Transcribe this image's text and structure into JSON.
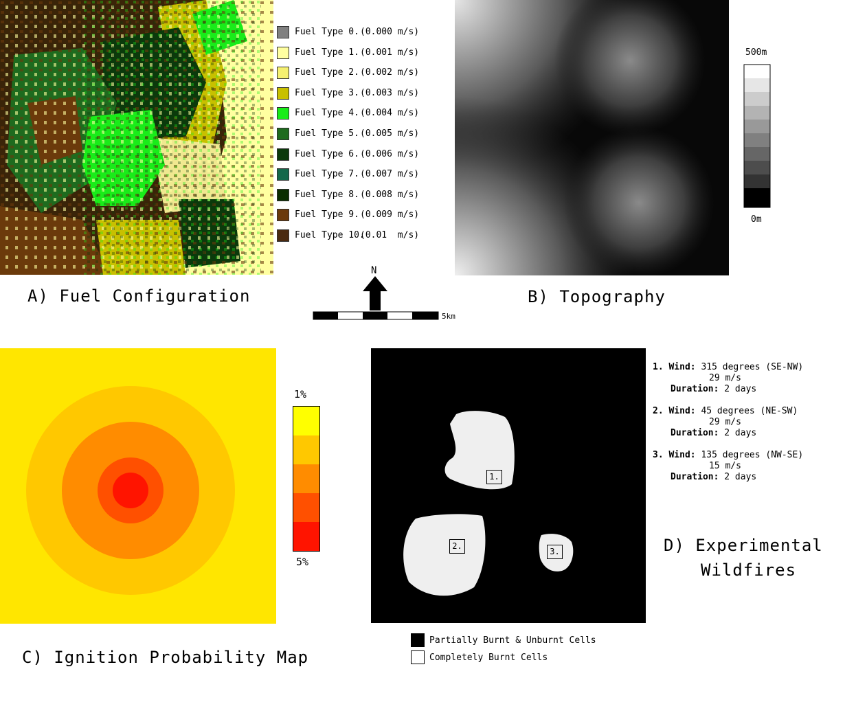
{
  "panels": {
    "a_title": "A) Fuel Configuration",
    "b_title": "B) Topography",
    "c_title": "C) Ignition Probability Map",
    "d_title_line1": "D) Experimental",
    "d_title_line2": "Wildfires"
  },
  "fuel_legend": [
    {
      "label": "Fuel Type 0.",
      "value": "(0.000 m/s)",
      "color": "#808080"
    },
    {
      "label": "Fuel Type 1.",
      "value": "(0.001 m/s)",
      "color": "#ffffa0"
    },
    {
      "label": "Fuel Type 2.",
      "value": "(0.002 m/s)",
      "color": "#f5f070"
    },
    {
      "label": "Fuel Type 3.",
      "value": "(0.003 m/s)",
      "color": "#c8c000"
    },
    {
      "label": "Fuel Type 4.",
      "value": "(0.004 m/s)",
      "color": "#19ec19"
    },
    {
      "label": "Fuel Type 5.",
      "value": "(0.005 m/s)",
      "color": "#1e6b1e"
    },
    {
      "label": "Fuel Type 6.",
      "value": "(0.006 m/s)",
      "color": "#0b3a0b"
    },
    {
      "label": "Fuel Type 7.",
      "value": "(0.007 m/s)",
      "color": "#13684a"
    },
    {
      "label": "Fuel Type 8.",
      "value": "(0.008 m/s)",
      "color": "#0a2e00"
    },
    {
      "label": "Fuel Type 9.",
      "value": "(0.009 m/s)",
      "color": "#6b3a0b"
    },
    {
      "label": "Fuel Type 10.",
      "value": "(0.01  m/s)",
      "color": "#4a2a10"
    }
  ],
  "compass": {
    "north": "N",
    "scale_label": "5km"
  },
  "topography_legend": {
    "max_label": "500m",
    "min_label": "0m"
  },
  "ignition_legend": {
    "top_label": "1%",
    "bottom_label": "5%",
    "colors": [
      "#ffff00",
      "#ffc800",
      "#ff8c00",
      "#ff5000",
      "#ff1400"
    ]
  },
  "fires": [
    {
      "id": "1.",
      "wind_label": "Wind:",
      "wind_value": " 315 degrees (SE-NW)",
      "speed": "29 m/s",
      "duration_label": "Duration:",
      "duration_value": " 2 days"
    },
    {
      "id": "2.",
      "wind_label": "Wind:",
      "wind_value": " 45 degrees (NE-SW)",
      "speed": "29 m/s",
      "duration_label": "Duration:",
      "duration_value": " 2 days"
    },
    {
      "id": "3.",
      "wind_label": "Wind:",
      "wind_value": " 135 degrees (NW-SE)",
      "speed": "15 m/s",
      "duration_label": "Duration:",
      "duration_value": " 2 days"
    }
  ],
  "burn_legend": {
    "partial": "Partially Burnt & Unburnt Cells",
    "complete": "Completely Burnt Cells"
  }
}
